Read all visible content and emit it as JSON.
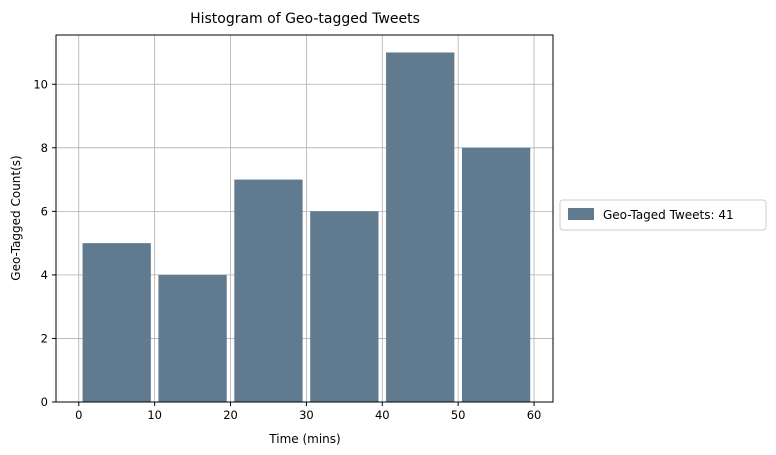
{
  "chart_data": {
    "type": "bar",
    "title": "Histogram of Geo-tagged Tweets",
    "xlabel": "Time (mins)",
    "ylabel": "Geo-Tagged Count(s)",
    "bins": [
      {
        "start": 0,
        "end": 10,
        "value": 5
      },
      {
        "start": 10,
        "end": 20,
        "value": 4
      },
      {
        "start": 20,
        "end": 30,
        "value": 7
      },
      {
        "start": 30,
        "end": 40,
        "value": 6
      },
      {
        "start": 40,
        "end": 50,
        "value": 11
      },
      {
        "start": 50,
        "end": 60,
        "value": 8
      }
    ],
    "xlim": [
      -3,
      62.5
    ],
    "ylim": [
      0,
      11.55
    ],
    "xticks": [
      0,
      10,
      20,
      30,
      40,
      50,
      60
    ],
    "yticks": [
      0,
      2,
      4,
      6,
      8,
      10
    ],
    "grid": true,
    "legend": {
      "position": "right",
      "entries": [
        {
          "label": "Geo-Taged Tweets: 41"
        }
      ]
    },
    "colors": {
      "bar": "#607b8f",
      "grid": "#b0b0b0",
      "axis": "#000000"
    }
  }
}
